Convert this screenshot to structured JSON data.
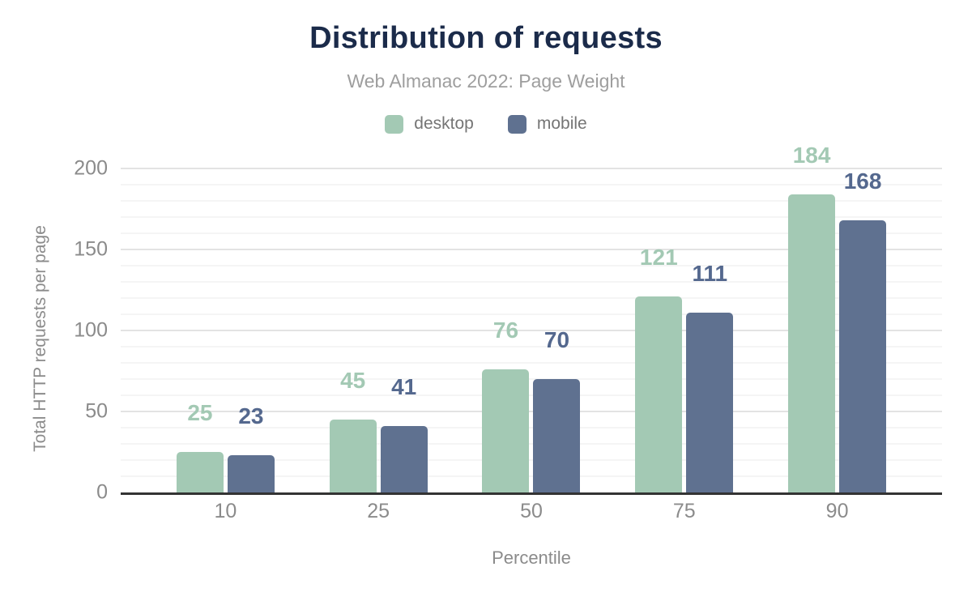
{
  "chart_data": {
    "type": "bar",
    "title": "Distribution of requests",
    "subtitle": "Web Almanac 2022: Page Weight",
    "categories": [
      "10",
      "25",
      "50",
      "75",
      "90"
    ],
    "series": [
      {
        "name": "desktop",
        "color": "#a3c9b4",
        "label_color": "#a3c9b4",
        "values": [
          25,
          45,
          76,
          121,
          184
        ]
      },
      {
        "name": "mobile",
        "color": "#5f7190",
        "label_color": "#54688e",
        "values": [
          23,
          41,
          70,
          111,
          168
        ]
      }
    ],
    "xlabel": "Percentile",
    "ylabel": "Total HTTP requests per page",
    "ylim": [
      0,
      200
    ],
    "yticks": [
      0,
      50,
      100,
      150,
      200
    ],
    "minor_grid_step": 10,
    "major_grid_step": 50,
    "grid": true,
    "data_labels": true,
    "legend_position": "top",
    "colors": {
      "title": "#1b2b4a",
      "subtitle": "#9e9e9e",
      "axis_text": "#8b8b8b",
      "legend_text": "#757575",
      "axis_line": "#333333",
      "major_grid": "#e3e3e3",
      "minor_grid": "#f5f5f5"
    }
  }
}
